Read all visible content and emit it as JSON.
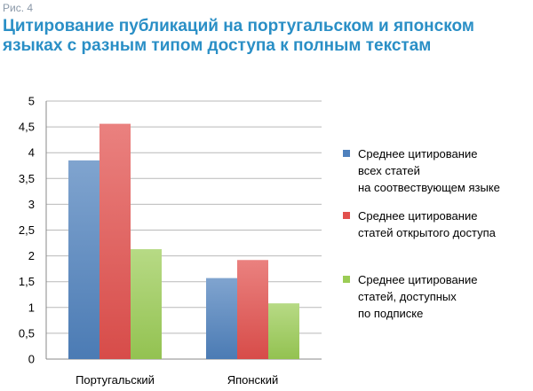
{
  "figure": {
    "label": "Рис. 4",
    "title": "Цитирование публикаций на португальском и японском языках с разным типом доступа к полным текстам"
  },
  "chart_data": {
    "type": "bar",
    "categories": [
      "Португальский",
      "Японский"
    ],
    "series": [
      {
        "name": "Среднее цитирование всех статей на соотвествующем языке",
        "legend_lines": [
          "Среднее цитирование",
          "всех статей",
          "на соотвествующем языке"
        ],
        "values": [
          3.85,
          1.57
        ],
        "color": "#4f81bd"
      },
      {
        "name": "Среднее цитирование статей открытого доступа",
        "legend_lines": [
          "Среднее цитирование",
          "статей открытого доступа"
        ],
        "values": [
          4.56,
          1.92
        ],
        "color": "#e2504d"
      },
      {
        "name": "Среднее цитирование статей, доступных по подписке",
        "legend_lines": [
          "Среднее цитирование",
          "статей, доступных",
          "по подписке"
        ],
        "values": [
          2.13,
          1.08
        ],
        "color": "#9bcc55"
      }
    ],
    "ylim": [
      0,
      5
    ],
    "yticks": [
      0,
      0.5,
      1,
      1.5,
      2,
      2.5,
      3,
      3.5,
      4,
      4.5,
      5
    ],
    "ytick_labels": [
      "0",
      "0,5",
      "1",
      "1,5",
      "2",
      "2,5",
      "3",
      "3,5",
      "4",
      "4,5",
      "5"
    ],
    "grid": true,
    "legend_position": "right",
    "xlabel": "",
    "ylabel": ""
  }
}
